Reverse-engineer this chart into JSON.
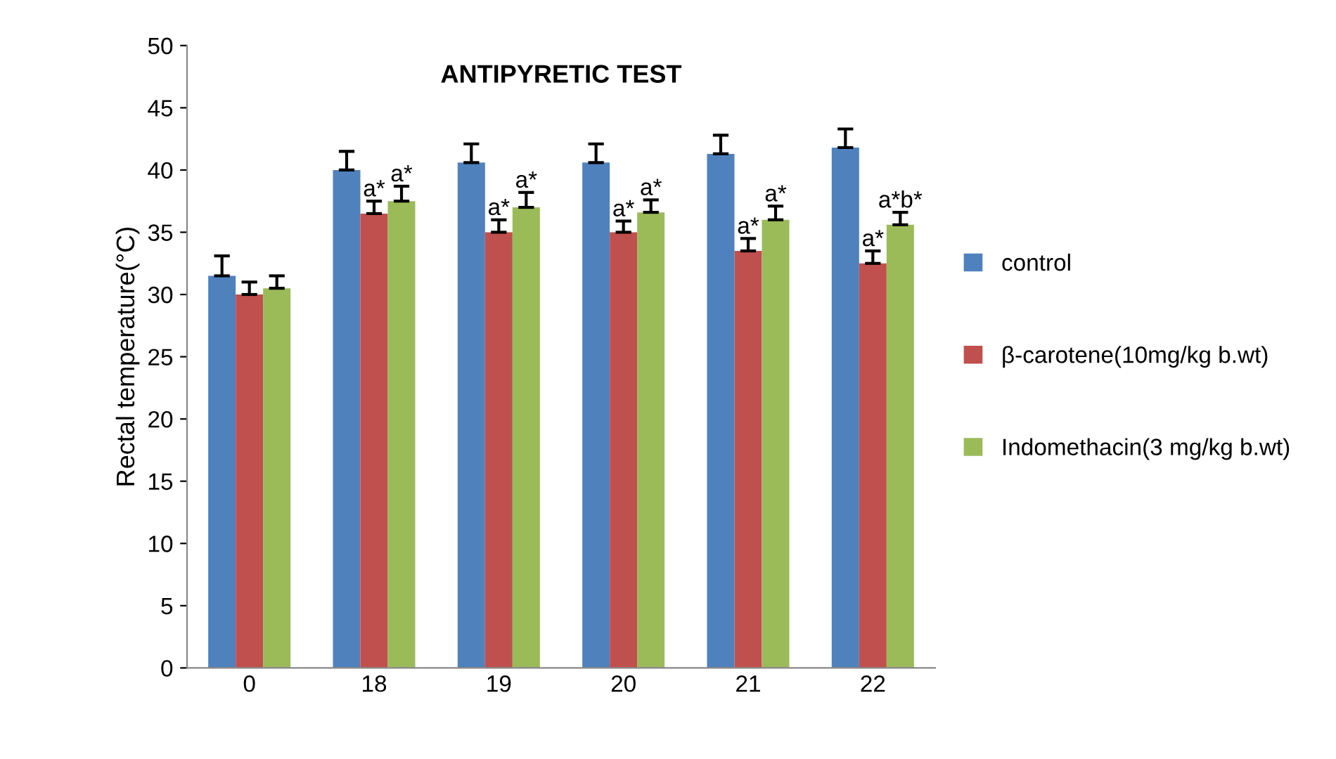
{
  "chart_data": {
    "type": "bar",
    "title": "ANTIPYRETIC TEST",
    "ylabel": "Rectal temperature(°C)",
    "categories": [
      "0",
      "18",
      "19",
      "20",
      "21",
      "22"
    ],
    "series": [
      {
        "name": "control",
        "color": "#4f81bd",
        "values": [
          31.5,
          40,
          40.6,
          40.6,
          41.3,
          41.8
        ],
        "errors": [
          1.6,
          1.5,
          1.5,
          1.5,
          1.5,
          1.5
        ]
      },
      {
        "name": "β-carotene(10mg/kg b.wt)",
        "color": "#c0504d",
        "values": [
          30,
          36.5,
          35,
          35,
          33.5,
          32.5
        ],
        "errors": [
          1,
          1,
          1,
          0.9,
          1,
          1
        ]
      },
      {
        "name": "Indomethacin(3 mg/kg b.wt)",
        "color": "#9bbb59",
        "values": [
          30.5,
          37.5,
          37,
          36.6,
          36,
          35.6
        ],
        "errors": [
          1,
          1.2,
          1.2,
          1,
          1.1,
          1
        ]
      }
    ],
    "ylim": [
      0,
      50
    ],
    "yticks": [
      0,
      5,
      10,
      15,
      20,
      25,
      30,
      35,
      40,
      45,
      50
    ],
    "grid": false,
    "legend": "right",
    "annotations": [
      {
        "text": "a*",
        "x": "18",
        "y": 36.5
      },
      "a*",
      {
        "text": "a*",
        "x": "19",
        "y": 35
      },
      "a*",
      {
        "text": "a*",
        "x": "20",
        "y": 35
      },
      "a*",
      {
        "text": "a*",
        "x": "21",
        "y": 33.5
      },
      "a*",
      {
        "text": "a*",
        "x": "22",
        "y": 32.5
      },
      "a*b*"
    ]
  }
}
